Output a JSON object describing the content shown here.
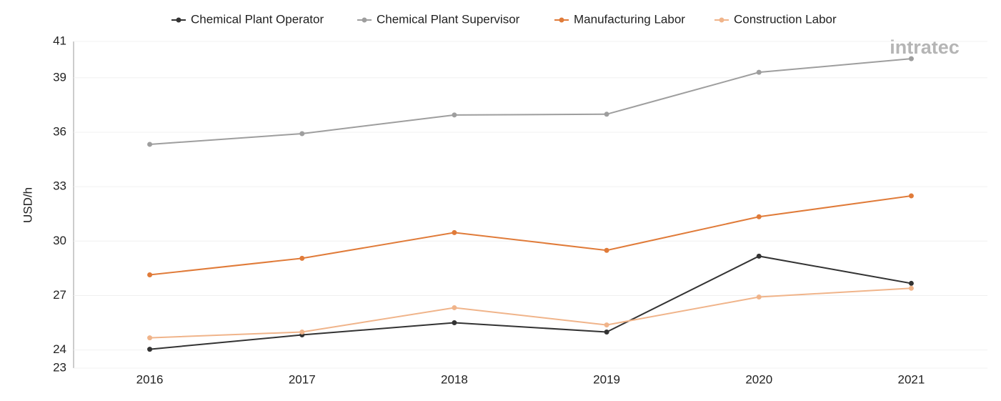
{
  "chart_data": {
    "type": "line",
    "y_label": "USD/h",
    "watermark": "intratec",
    "categories": [
      "2016",
      "2017",
      "2018",
      "2019",
      "2020",
      "2021"
    ],
    "series": [
      {
        "name": "Chemical Plant Operator",
        "color": "#333333",
        "values": [
          24.04,
          24.83,
          25.5,
          24.99,
          29.17,
          27.67
        ]
      },
      {
        "name": "Chemical Plant Supervisor",
        "color": "#9e9e9e",
        "values": [
          35.33,
          35.92,
          36.95,
          36.99,
          39.3,
          40.05
        ]
      },
      {
        "name": "Manufacturing Labor",
        "color": "#e07b39",
        "values": [
          28.14,
          29.05,
          30.47,
          29.49,
          31.34,
          32.49
        ]
      },
      {
        "name": "Construction Labor",
        "color": "#f0b48a",
        "values": [
          24.67,
          24.99,
          26.33,
          25.38,
          26.92,
          27.4
        ]
      }
    ],
    "ylim": [
      23,
      41
    ],
    "yticks": [
      23,
      24,
      27,
      30,
      33,
      36,
      39,
      41
    ],
    "grid": true,
    "legend": "top"
  }
}
